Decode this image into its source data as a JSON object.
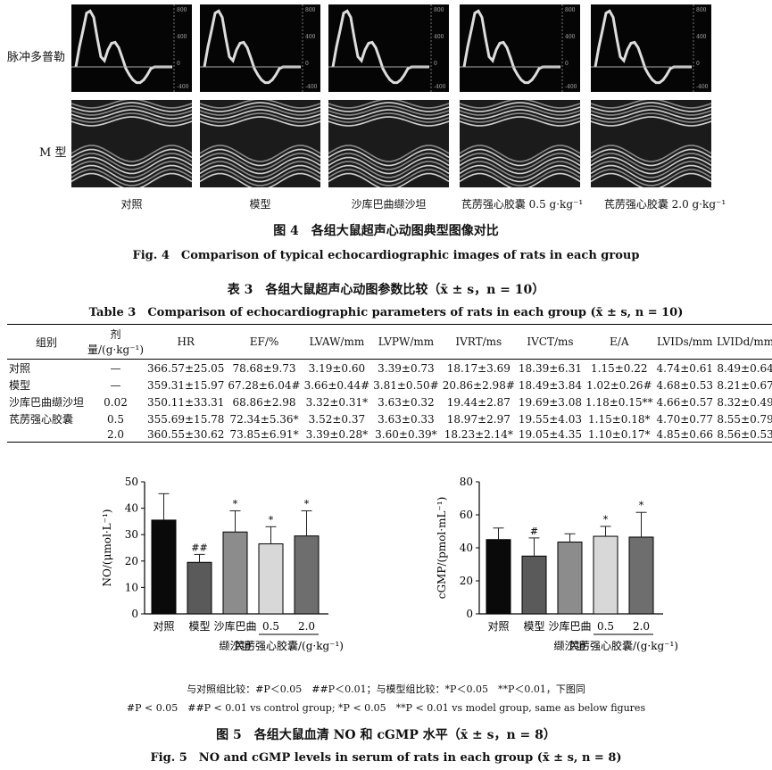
{
  "fig4": {
    "row_doppler": "脉冲多普勒",
    "row_mmode": "M 型",
    "groups": [
      "对照",
      "模型",
      "沙库巴曲缬沙坦",
      "芪苈强心胶囊 0.5 g·kg⁻¹",
      "芪苈强心胶囊 2.0 g·kg⁻¹"
    ],
    "doppler_scale": [
      "800",
      "400",
      "0",
      "-400"
    ],
    "caption_cn": "图 4　各组大鼠超声心动图典型图像对比",
    "caption_en": "Fig. 4　Comparison of typical echocardiographic images of rats in each group"
  },
  "table3": {
    "title_cn": "表 3　各组大鼠超声心动图参数比较（x̄ ± s，n = 10）",
    "title_en": "Table 3　Comparison of echocardiographic parameters of rats in each group (x̄ ± s, n = 10)",
    "headers": [
      "组别",
      "剂量/(g·kg⁻¹)",
      "HR",
      "EF/%",
      "LVAW/mm",
      "LVPW/mm",
      "IVRT/ms",
      "IVCT/ms",
      "E/A",
      "LVIDs/mm",
      "LVIDd/mm"
    ],
    "rows": [
      [
        "对照",
        "—",
        "366.57±25.05",
        "78.68±9.73",
        "3.19±0.60",
        "3.39±0.73",
        "18.17±3.69",
        "18.39±6.31",
        "1.15±0.22",
        "4.74±0.61",
        "8.49±0.64"
      ],
      [
        "模型",
        "—",
        "359.31±15.97",
        "67.28±6.04#",
        "3.66±0.44#",
        "3.81±0.50#",
        "20.86±2.98#",
        "18.49±3.84",
        "1.02±0.26#",
        "4.68±0.53",
        "8.21±0.67"
      ],
      [
        "沙库巴曲缬沙坦",
        "0.02",
        "350.11±33.31",
        "68.86±2.98",
        "3.32±0.31*",
        "3.63±0.32",
        "19.44±2.87",
        "19.69±3.08",
        "1.18±0.15**",
        "4.66±0.57",
        "8.32±0.49"
      ],
      [
        "芪苈强心胶囊",
        "0.5",
        "355.69±15.78",
        "72.34±5.36*",
        "3.52±0.37",
        "3.63±0.33",
        "18.97±2.97",
        "19.55±4.03",
        "1.15±0.18*",
        "4.70±0.77",
        "8.55±0.79"
      ],
      [
        "",
        "2.0",
        "360.55±30.62",
        "73.85±6.91*",
        "3.39±0.28*",
        "3.60±0.39*",
        "18.23±2.14*",
        "19.05±4.35",
        "1.10±0.17*",
        "4.85±0.66",
        "8.56±0.53"
      ]
    ]
  },
  "chart_data": [
    {
      "type": "bar",
      "ylabel": "NO/(μmol·L⁻¹)",
      "ylim": [
        0,
        50
      ],
      "yticks": [
        "0",
        "10",
        "20",
        "30",
        "40",
        "50"
      ],
      "categories": [
        "对照",
        "模型",
        "沙库巴曲缬沙坦",
        "0.5",
        "2.0"
      ],
      "values": [
        35.5,
        19.5,
        31,
        26.5,
        29.5
      ],
      "errors": [
        10,
        3,
        8,
        6.5,
        9.5
      ],
      "annotations": [
        "",
        "##",
        "*",
        "*",
        "*"
      ],
      "colors": [
        "#0a0a0a",
        "#5a5a5a",
        "#8c8c8c",
        "#d8d8d8",
        "#6e6e6e"
      ],
      "group_label": "芪苈强心胶囊/(g·kg⁻¹)"
    },
    {
      "type": "bar",
      "ylabel": "cGMP/(pmol·mL⁻¹)",
      "ylim": [
        0,
        80
      ],
      "yticks": [
        "0",
        "20",
        "40",
        "60",
        "80"
      ],
      "categories": [
        "对照",
        "模型",
        "沙库巴曲缬沙坦",
        "0.5",
        "2.0"
      ],
      "values": [
        45,
        35,
        43.5,
        47,
        46.5
      ],
      "errors": [
        7,
        11,
        5,
        6,
        15
      ],
      "annotations": [
        "",
        "#",
        "",
        "*",
        "*"
      ],
      "colors": [
        "#0a0a0a",
        "#5a5a5a",
        "#8c8c8c",
        "#d8d8d8",
        "#6e6e6e"
      ],
      "group_label": "芪苈强心胶囊/(g·kg⁻¹)"
    }
  ],
  "fig5": {
    "note_cn": "与对照组比较：#P＜0.05　##P＜0.01；与模型组比较：*P＜0.05　**P＜0.01，下图同",
    "note_en": "#P < 0.05　##P < 0.01 vs control group; *P < 0.05　**P < 0.01 vs model group, same as below figures",
    "caption_cn": "图 5　各组大鼠血清 NO 和 cGMP 水平（x̄ ± s，n = 8）",
    "caption_en": "Fig. 5　NO and cGMP levels in serum of rats in each group (x̄ ± s, n = 8)"
  }
}
